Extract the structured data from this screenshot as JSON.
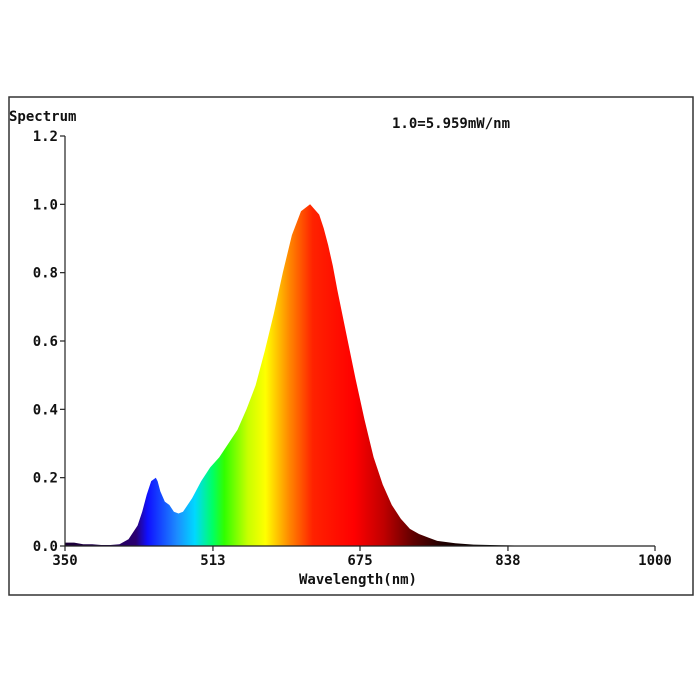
{
  "chart_data": {
    "type": "area",
    "title": "Spectrum",
    "annotation": "1.0=5.959mW/nm",
    "xlabel": "Wavelength(nm)",
    "ylabel": "",
    "xlim": [
      350,
      1000
    ],
    "ylim": [
      0,
      1.2
    ],
    "x_ticks": [
      {
        "value": 350,
        "label": "350"
      },
      {
        "value": 513,
        "label": "513"
      },
      {
        "value": 675,
        "label": "675"
      },
      {
        "value": 838,
        "label": "838"
      },
      {
        "value": 1000,
        "label": "1000"
      }
    ],
    "y_ticks": [
      {
        "value": 0.0,
        "label": "0.0"
      },
      {
        "value": 0.2,
        "label": "0.2"
      },
      {
        "value": 0.4,
        "label": "0.4"
      },
      {
        "value": 0.6,
        "label": "0.6"
      },
      {
        "value": 0.8,
        "label": "0.8"
      },
      {
        "value": 1.0,
        "label": "1.0"
      },
      {
        "value": 1.2,
        "label": "1.2"
      }
    ],
    "grid": false,
    "fill": "wavelength spectrum colours",
    "series": [
      {
        "x": [
          350,
          360,
          370,
          380,
          390,
          400,
          410,
          420,
          430,
          435,
          440,
          445,
          450,
          452,
          455,
          460,
          465,
          470,
          475,
          480,
          490,
          500,
          510,
          520,
          530,
          540,
          550,
          560,
          570,
          580,
          590,
          600,
          610,
          620,
          630,
          635,
          640,
          645,
          650,
          660,
          670,
          680,
          690,
          700,
          710,
          720,
          730,
          740,
          750,
          760,
          780,
          800,
          830,
          860,
          900,
          950,
          1000
        ],
        "y": [
          0.01,
          0.01,
          0.005,
          0.005,
          0.003,
          0.003,
          0.005,
          0.02,
          0.06,
          0.1,
          0.15,
          0.19,
          0.2,
          0.19,
          0.16,
          0.13,
          0.12,
          0.1,
          0.095,
          0.1,
          0.14,
          0.19,
          0.23,
          0.26,
          0.3,
          0.34,
          0.4,
          0.47,
          0.57,
          0.68,
          0.8,
          0.91,
          0.98,
          1.0,
          0.97,
          0.93,
          0.88,
          0.82,
          0.75,
          0.62,
          0.49,
          0.37,
          0.26,
          0.18,
          0.12,
          0.08,
          0.05,
          0.035,
          0.025,
          0.015,
          0.008,
          0.004,
          0.002,
          0.001,
          0.001,
          0.0005,
          0.0
        ]
      }
    ]
  }
}
